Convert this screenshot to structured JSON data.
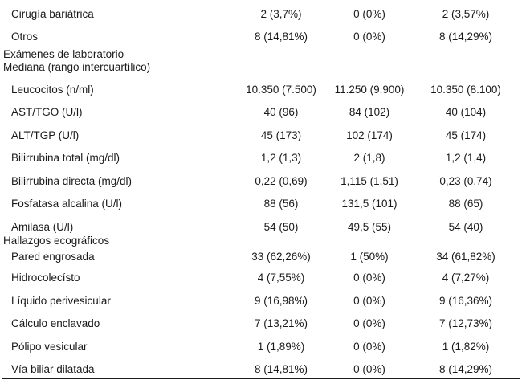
{
  "table": {
    "rows": [
      {
        "type": "item",
        "label": "Cirugía bariátrica",
        "c1": "2 (3,7%)",
        "c2": "0 (0%)",
        "c3": "2 (3,57%)"
      },
      {
        "type": "item",
        "label": "Otros",
        "c1": "8 (14,81%)",
        "c2": "0 (0%)",
        "c3": "8 (14,29%)"
      },
      {
        "type": "section",
        "line1": "Exámenes de laboratorio",
        "line2": "Mediana (rango intercuartílico)"
      },
      {
        "type": "item",
        "label": "Leucocitos (n/ml)",
        "c1": "10.350 (7.500)",
        "c2": "11.250 (9.900)",
        "c3": "10.350 (8.100)"
      },
      {
        "type": "item",
        "label": "AST/TGO (U/l)",
        "c1": "40 (96)",
        "c2": "84 (102)",
        "c3": "40 (104)"
      },
      {
        "type": "item",
        "label": "ALT/TGP (U/l)",
        "c1": "45 (173)",
        "c2": "102 (174)",
        "c3": "45 (174)"
      },
      {
        "type": "item",
        "label": "Bilirrubina total (mg/dl)",
        "c1": "1,2 (1,3)",
        "c2": "2 (1,8)",
        "c3": "1,2 (1,4)"
      },
      {
        "type": "item",
        "label": "Bilirrubina directa (mg/dl)",
        "c1": "0,22 (0,69)",
        "c2": "1,115 (1,51)",
        "c3": "0,23 (0,74)"
      },
      {
        "type": "item",
        "label": "Fosfatasa alcalina (U/l)",
        "c1": "88 (56)",
        "c2": "131,5 (101)",
        "c3": "88 (65)"
      },
      {
        "type": "item",
        "label": "Amilasa (U/l)",
        "c1": "54 (50)",
        "c2": "49,5 (55)",
        "c3": "54 (40)"
      },
      {
        "type": "section",
        "line1": "Hallazgos ecográficos"
      },
      {
        "type": "item",
        "label": "Pared engrosada",
        "c1": "33 (62,26%)",
        "c2": "1 (50%)",
        "c3": "34 (61,82%)"
      },
      {
        "type": "item",
        "label": "Hidrocolecísto",
        "c1": "4 (7,55%)",
        "c2": "0 (0%)",
        "c3": "4 (7,27%)"
      },
      {
        "type": "item",
        "label": "Líquido perivesicular",
        "c1": "9 (16,98%)",
        "c2": "0 (0%)",
        "c3": "9 (16,36%)"
      },
      {
        "type": "item",
        "label": "Cálculo enclavado",
        "c1": "7 (13,21%)",
        "c2": "0 (0%)",
        "c3": "7 (12,73%)"
      },
      {
        "type": "item",
        "label": "Pólipo vesicular",
        "c1": "1 (1,89%)",
        "c2": "0 (0%)",
        "c3": "1 (1,82%)"
      },
      {
        "type": "item",
        "label": "Vía biliar dilatada",
        "c1": "8 (14,81%)",
        "c2": "0 (0%)",
        "c3": "8 (14,29%)"
      }
    ]
  }
}
